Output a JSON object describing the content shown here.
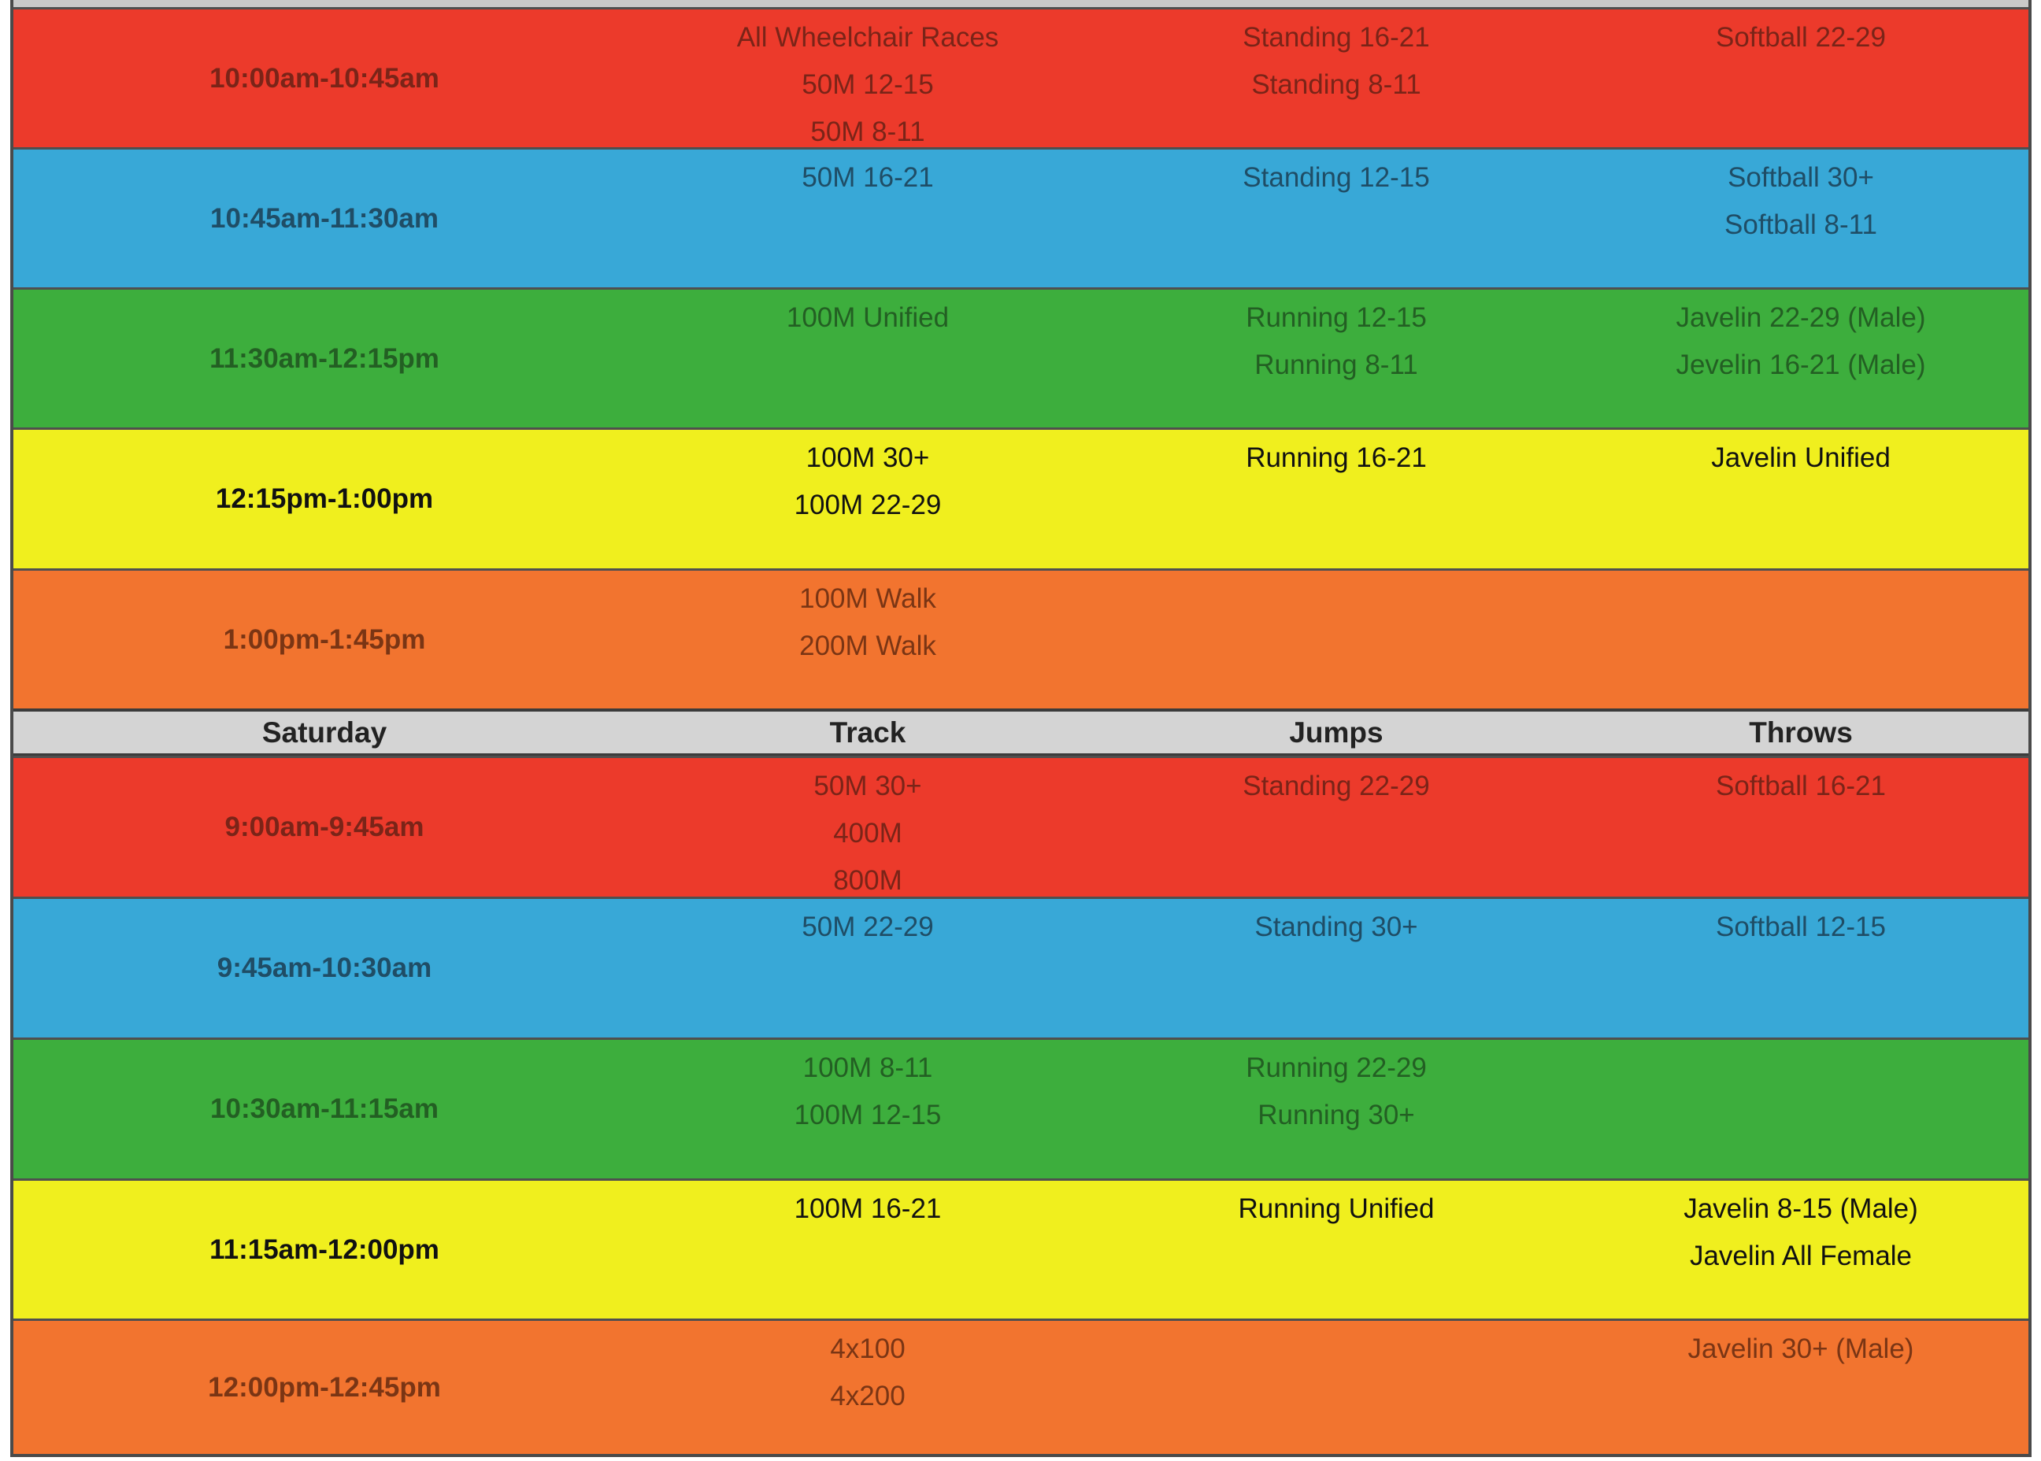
{
  "colors": {
    "red": "#ec3a2b",
    "blue": "#38a8d7",
    "green": "#3dae3d",
    "yellow": "#f0ef1e",
    "orange": "#f2742f",
    "header": "#d4d4d4"
  },
  "section1": {
    "rows": [
      {
        "color": "red",
        "time": "10:00am-10:45am",
        "track": [
          "All Wheelchair Races",
          "50M 12-15",
          "50M 8-11"
        ],
        "jumps": [
          "Standing 16-21",
          "Standing 8-11"
        ],
        "throws": [
          "Softball 22-29"
        ]
      },
      {
        "color": "blue",
        "time": "10:45am-11:30am",
        "track": [
          "50M 16-21"
        ],
        "jumps": [
          "Standing 12-15"
        ],
        "throws": [
          "Softball 30+",
          "Softball 8-11"
        ]
      },
      {
        "color": "green",
        "time": "11:30am-12:15pm",
        "track": [
          "100M Unified"
        ],
        "jumps": [
          "Running 12-15",
          "Running 8-11"
        ],
        "throws": [
          "Javelin 22-29 (Male)",
          "Jevelin 16-21 (Male)"
        ]
      },
      {
        "color": "yellow",
        "time": "12:15pm-1:00pm",
        "track": [
          "100M 30+",
          "100M 22-29"
        ],
        "jumps": [
          "Running 16-21"
        ],
        "throws": [
          "Javelin Unified"
        ]
      },
      {
        "color": "orange",
        "time": "1:00pm-1:45pm",
        "track": [
          "100M Walk",
          "200M Walk"
        ],
        "jumps": [],
        "throws": []
      }
    ]
  },
  "header": {
    "day": "Saturday",
    "track": "Track",
    "jumps": "Jumps",
    "throws": "Throws"
  },
  "section2": {
    "rows": [
      {
        "color": "red",
        "time": "9:00am-9:45am",
        "track": [
          "50M 30+",
          "400M",
          "800M"
        ],
        "jumps": [
          "Standing 22-29"
        ],
        "throws": [
          "Softball 16-21"
        ]
      },
      {
        "color": "blue",
        "time": "9:45am-10:30am",
        "track": [
          "50M 22-29"
        ],
        "jumps": [
          "Standing 30+"
        ],
        "throws": [
          "Softball 12-15"
        ]
      },
      {
        "color": "green",
        "time": "10:30am-11:15am",
        "track": [
          "100M 8-11",
          "100M 12-15"
        ],
        "jumps": [
          "Running 22-29",
          "Running 30+"
        ],
        "throws": []
      },
      {
        "color": "yellow",
        "time": "11:15am-12:00pm",
        "track": [
          "100M 16-21"
        ],
        "jumps": [
          "Running Unified"
        ],
        "throws": [
          "Javelin 8-15 (Male)",
          "Javelin All Female"
        ]
      },
      {
        "color": "orange",
        "time": "12:00pm-12:45pm",
        "track": [
          "4x100",
          "4x200"
        ],
        "jumps": [],
        "throws": [
          "Javelin 30+ (Male)"
        ]
      }
    ]
  }
}
